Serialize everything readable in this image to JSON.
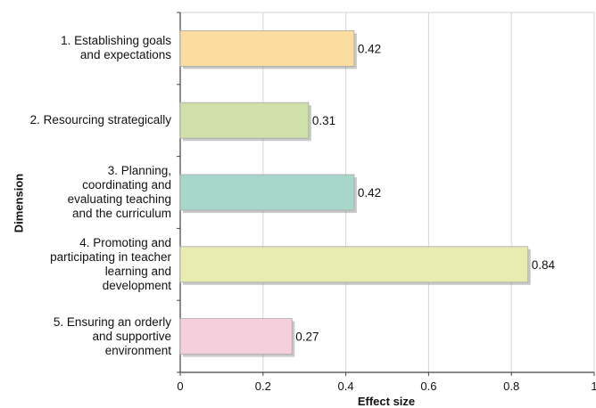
{
  "chart_data": {
    "type": "bar",
    "orientation": "horizontal",
    "categories": [
      "1.  Establishing goals\nand expectations",
      "2.  Resourcing strategically",
      "3.  Planning,\ncoordinating and\nevaluating teaching\nand the curriculum",
      "4.  Promoting and\nparticipating in teacher\nlearning and\ndevelopment",
      "5.  Ensuring an orderly\nand supportive\nenvironment"
    ],
    "values": [
      0.42,
      0.31,
      0.42,
      0.84,
      0.27
    ],
    "value_labels": [
      "0.42",
      "0.31",
      "0.42",
      "0.84",
      "0.27"
    ],
    "colors": [
      "#fcdc9f",
      "#cfe0a8",
      "#a7d6ca",
      "#e8ecae",
      "#f5cfdb"
    ],
    "xlabel": "Effect size",
    "ylabel": "Dimension",
    "xlim": [
      0,
      1
    ],
    "xticks": [
      "0",
      "0.2",
      "0.4",
      "0.6",
      "0.8",
      "1"
    ],
    "grid": true
  }
}
